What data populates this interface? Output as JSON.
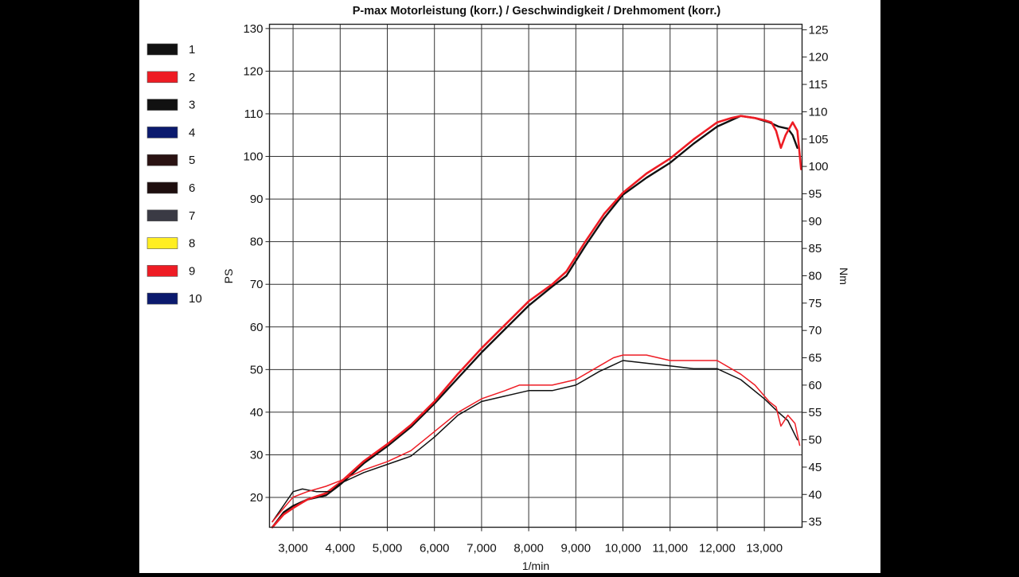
{
  "chart_data": {
    "type": "line",
    "title": "P-max Motorleistung (korr.) / Geschwindigkeit / Drehmoment (korr.)",
    "xlabel": "1/min",
    "ylabel": "PS",
    "y2label": "Nm",
    "xlim": [
      2500,
      13800
    ],
    "ylim": [
      13,
      131
    ],
    "y2lim": [
      34,
      126
    ],
    "x_ticks": [
      3000,
      4000,
      5000,
      6000,
      7000,
      8000,
      9000,
      10000,
      11000,
      12000,
      13000
    ],
    "x_tick_labels": [
      "3,000",
      "4,000",
      "5,000",
      "6,000",
      "7,000",
      "8,000",
      "9,000",
      "10,000",
      "11,000",
      "12,000",
      "13,000"
    ],
    "y_ticks": [
      20,
      30,
      40,
      50,
      60,
      70,
      80,
      90,
      100,
      110,
      120,
      130
    ],
    "y2_ticks": [
      35,
      40,
      45,
      50,
      55,
      60,
      65,
      70,
      75,
      80,
      85,
      90,
      95,
      100,
      105,
      110,
      115,
      120,
      125
    ],
    "grid": true,
    "legend": {
      "position": "left",
      "entries": [
        {
          "label": "1",
          "color": "#111111"
        },
        {
          "label": "2",
          "color": "#ee1c24"
        },
        {
          "label": "3",
          "color": "#111111"
        },
        {
          "label": "4",
          "color": "#0b1a6e"
        },
        {
          "label": "5",
          "color": "#2a1212"
        },
        {
          "label": "6",
          "color": "#1e0e0e"
        },
        {
          "label": "7",
          "color": "#3a3a44"
        },
        {
          "label": "8",
          "color": "#ffee22"
        },
        {
          "label": "9",
          "color": "#ee1c24"
        },
        {
          "label": "10",
          "color": "#0b1a6e"
        }
      ]
    },
    "series": [
      {
        "axis": "left",
        "color": "#111111",
        "width": 2.4,
        "x": [
          2560,
          2800,
          3000,
          3300,
          3700,
          4000,
          4500,
          5000,
          5500,
          6000,
          6500,
          7000,
          7500,
          8000,
          8500,
          8800,
          9200,
          9600,
          10000,
          10500,
          11000,
          11500,
          12000,
          12300,
          12500,
          12800,
          13100,
          13300,
          13500,
          13600,
          13700
        ],
        "y": [
          13,
          16.5,
          18,
          19.5,
          20.5,
          23,
          28,
          32,
          36.5,
          42,
          48,
          54,
          59.5,
          65,
          69.5,
          72,
          79,
          85.5,
          91,
          95,
          98.5,
          103,
          107,
          108.5,
          109.5,
          109,
          108,
          107,
          106.5,
          105,
          102
        ]
      },
      {
        "axis": "left",
        "color": "#ee1c24",
        "width": 2.6,
        "x": [
          2560,
          2800,
          3000,
          3300,
          3700,
          4000,
          4500,
          5000,
          5500,
          6000,
          6500,
          7000,
          7500,
          8000,
          8500,
          8800,
          9200,
          9600,
          10000,
          10500,
          11000,
          11500,
          12000,
          12300,
          12500,
          12800,
          13000,
          13150,
          13250,
          13350,
          13450,
          13600,
          13700,
          13780
        ],
        "y": [
          13,
          16,
          17.5,
          19.5,
          21,
          23.5,
          28.5,
          32.5,
          37,
          42.5,
          49,
          55,
          60.5,
          66,
          70,
          73,
          80,
          86.5,
          91.5,
          96,
          99.5,
          104,
          108,
          109,
          109.5,
          109,
          108.5,
          108,
          106,
          102,
          105,
          108,
          106,
          97
        ]
      },
      {
        "axis": "right",
        "color": "#111111",
        "width": 1.5,
        "x": [
          2560,
          2800,
          3000,
          3200,
          3500,
          3800,
          4000,
          4500,
          5000,
          5500,
          6000,
          6500,
          7000,
          7500,
          8000,
          8500,
          9000,
          9500,
          10000,
          10500,
          11000,
          11500,
          12000,
          12500,
          13000,
          13300,
          13500,
          13700
        ],
        "y": [
          35,
          38,
          40.5,
          41,
          40.5,
          40.5,
          42,
          44,
          45.5,
          47,
          50.5,
          54.5,
          57,
          58,
          59,
          59,
          60,
          62.5,
          64.5,
          64,
          63.5,
          63,
          63,
          61,
          57.5,
          55,
          53.5,
          50
        ]
      },
      {
        "axis": "right",
        "color": "#ee1c24",
        "width": 1.5,
        "x": [
          2560,
          2800,
          3000,
          3300,
          3700,
          4000,
          4500,
          5000,
          5500,
          6000,
          6500,
          7000,
          7500,
          7800,
          8000,
          8500,
          9000,
          9500,
          9800,
          10000,
          10500,
          11000,
          11500,
          12000,
          12500,
          12800,
          13100,
          13250,
          13350,
          13500,
          13650,
          13750
        ],
        "y": [
          35,
          37.5,
          39.5,
          40.5,
          41.5,
          42.5,
          44.5,
          46,
          48,
          51.5,
          55,
          57.5,
          59,
          60,
          60,
          60,
          61,
          63.5,
          65,
          65.5,
          65.5,
          64.5,
          64.5,
          64.5,
          62,
          60,
          57,
          56,
          52.5,
          54.5,
          53,
          49
        ]
      }
    ]
  }
}
